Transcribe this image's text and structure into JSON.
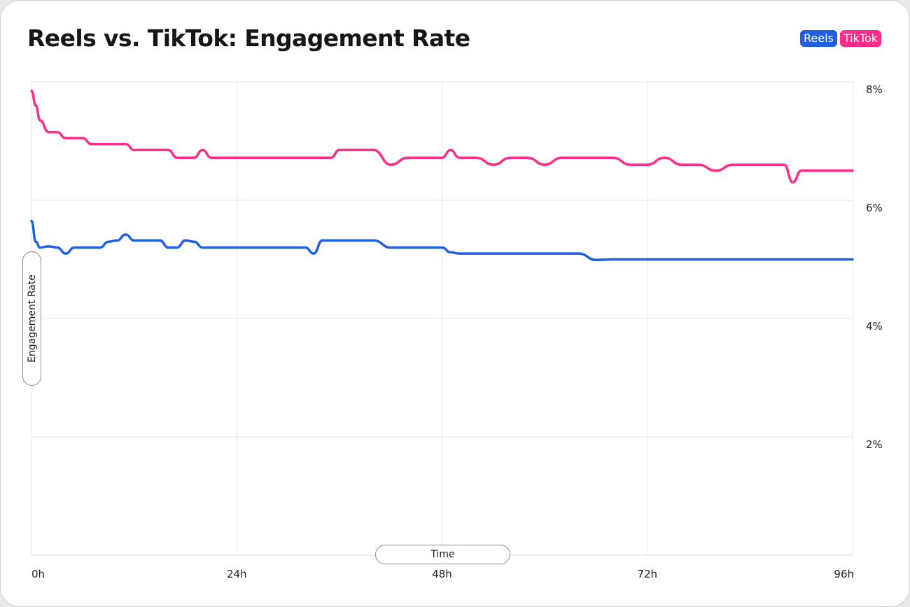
{
  "chart_data": {
    "type": "line",
    "title": "Reels vs. TikTok: Engagement Rate",
    "xlabel": "Time",
    "ylabel": "Engagement Rate",
    "x_unit": "h",
    "xlim": [
      0,
      96
    ],
    "ylim": [
      0,
      8
    ],
    "x_ticks": [
      {
        "value": 0,
        "label": "0h"
      },
      {
        "value": 24,
        "label": "24h"
      },
      {
        "value": 48,
        "label": "48h"
      },
      {
        "value": 72,
        "label": "72h"
      },
      {
        "value": 96,
        "label": "96h"
      }
    ],
    "y_ticks": [
      {
        "value": 2,
        "label": "2%"
      },
      {
        "value": 4,
        "label": "4%"
      },
      {
        "value": 6,
        "label": "6%"
      },
      {
        "value": 8,
        "label": "8%"
      }
    ],
    "grid": true,
    "legend_position": "top-right",
    "x": [
      0,
      0.5,
      1,
      2,
      3,
      4,
      5,
      6,
      7,
      8,
      9,
      10,
      11,
      12,
      13,
      14,
      15,
      16,
      17,
      18,
      19,
      20,
      21,
      22,
      23,
      24,
      26,
      28,
      30,
      32,
      33,
      34,
      35,
      36,
      38,
      39,
      40,
      42,
      44,
      46,
      47,
      48,
      49,
      50,
      52,
      54,
      56,
      58,
      60,
      62,
      64,
      66,
      68,
      70,
      71,
      72,
      74,
      76,
      78,
      80,
      82,
      84,
      86,
      87,
      88,
      89,
      90,
      92,
      94,
      96
    ],
    "series": [
      {
        "name": "Reels",
        "color": "#1f5fe0",
        "values": [
          5.65,
          5.3,
          5.2,
          5.22,
          5.2,
          5.1,
          5.2,
          5.2,
          5.2,
          5.2,
          5.3,
          5.32,
          5.42,
          5.32,
          5.32,
          5.32,
          5.32,
          5.2,
          5.2,
          5.32,
          5.3,
          5.2,
          5.2,
          5.2,
          5.2,
          5.2,
          5.2,
          5.2,
          5.2,
          5.2,
          5.1,
          5.32,
          5.32,
          5.32,
          5.32,
          5.32,
          5.32,
          5.2,
          5.2,
          5.2,
          5.2,
          5.2,
          5.12,
          5.1,
          5.1,
          5.1,
          5.1,
          5.1,
          5.1,
          5.1,
          5.1,
          4.99,
          5.0,
          5.0,
          5.0,
          5.0,
          5.0,
          5.0,
          5.0,
          5.0,
          5.0,
          5.0,
          5.0,
          5.0,
          5.0,
          5.0,
          5.0,
          5.0,
          5.0,
          5.0
        ]
      },
      {
        "name": "TikTok",
        "color": "#ff2d87",
        "values": [
          7.85,
          7.6,
          7.35,
          7.15,
          7.15,
          7.05,
          7.05,
          7.05,
          6.95,
          6.95,
          6.95,
          6.95,
          6.95,
          6.85,
          6.85,
          6.85,
          6.85,
          6.85,
          6.72,
          6.72,
          6.72,
          6.85,
          6.72,
          6.72,
          6.72,
          6.72,
          6.72,
          6.72,
          6.72,
          6.72,
          6.72,
          6.72,
          6.72,
          6.85,
          6.85,
          6.85,
          6.85,
          6.6,
          6.72,
          6.72,
          6.72,
          6.72,
          6.85,
          6.72,
          6.72,
          6.6,
          6.72,
          6.72,
          6.6,
          6.72,
          6.72,
          6.72,
          6.72,
          6.6,
          6.6,
          6.6,
          6.72,
          6.6,
          6.6,
          6.5,
          6.6,
          6.6,
          6.6,
          6.6,
          6.6,
          6.3,
          6.5,
          6.5,
          6.5,
          6.5
        ]
      }
    ]
  }
}
